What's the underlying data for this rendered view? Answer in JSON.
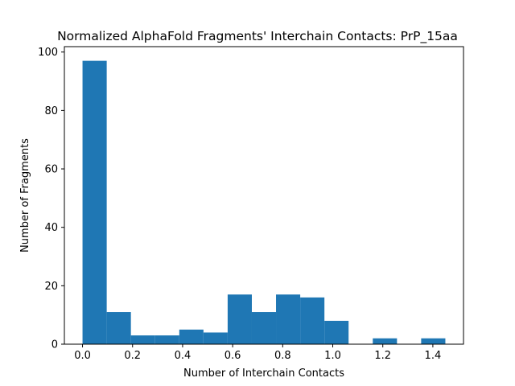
{
  "chart_data": {
    "type": "bar",
    "title": "Normalized AlphaFold Fragments' Interchain Contacts: PrP_15aa",
    "xlabel": "Number of Interchain Contacts",
    "ylabel": "Number of Fragments",
    "xlim": [
      -0.0725,
      1.5225
    ],
    "ylim": [
      0,
      101.85
    ],
    "xticks": [
      0.0,
      0.2,
      0.4,
      0.6,
      0.8,
      1.0,
      1.2,
      1.4
    ],
    "xtick_labels": [
      "0.0",
      "0.2",
      "0.4",
      "0.6",
      "0.8",
      "1.0",
      "1.2",
      "1.4"
    ],
    "yticks": [
      0,
      20,
      40,
      60,
      80,
      100
    ],
    "ytick_labels": [
      "0",
      "20",
      "40",
      "60",
      "80",
      "100"
    ],
    "bin_edges": [
      0.0,
      0.0967,
      0.1933,
      0.29,
      0.3867,
      0.4833,
      0.58,
      0.6767,
      0.7733,
      0.87,
      0.9667,
      1.0633,
      1.16,
      1.2567,
      1.3533,
      1.45
    ],
    "values": [
      97,
      11,
      3,
      3,
      5,
      4,
      17,
      11,
      17,
      16,
      8,
      0,
      2,
      0,
      2
    ],
    "bar_color": "#1f77b4",
    "grid": false,
    "legend": "none"
  }
}
